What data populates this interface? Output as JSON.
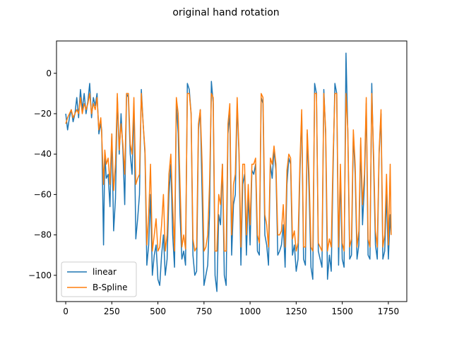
{
  "chart_data": {
    "type": "line",
    "title": "original hand rotation",
    "xlabel": "",
    "ylabel": "",
    "xlim": [
      -50,
      1850
    ],
    "ylim": [
      -113,
      16
    ],
    "xticks": [
      0,
      250,
      500,
      750,
      1000,
      1250,
      1500,
      1750
    ],
    "yticks": [
      0,
      -20,
      -40,
      -60,
      -80,
      -100
    ],
    "grid": false,
    "legend_position": "lower-left",
    "colors": {
      "linear": "#1f77b4",
      "bspline": "#ff7f0e"
    },
    "series": [
      {
        "name": "linear",
        "x": [
          0,
          10,
          20,
          30,
          40,
          50,
          60,
          70,
          80,
          90,
          100,
          110,
          120,
          130,
          140,
          150,
          160,
          170,
          180,
          190,
          195,
          205,
          212,
          220,
          230,
          240,
          250,
          260,
          270,
          280,
          290,
          300,
          310,
          320,
          330,
          340,
          350,
          360,
          370,
          380,
          390,
          400,
          410,
          420,
          430,
          440,
          450,
          460,
          470,
          480,
          490,
          500,
          510,
          520,
          530,
          540,
          550,
          560,
          570,
          580,
          590,
          600,
          610,
          620,
          630,
          640,
          650,
          660,
          670,
          680,
          690,
          700,
          710,
          720,
          730,
          740,
          750,
          760,
          770,
          780,
          790,
          800,
          810,
          820,
          830,
          840,
          850,
          860,
          870,
          880,
          890,
          900,
          910,
          920,
          930,
          940,
          950,
          960,
          970,
          980,
          990,
          1000,
          1010,
          1020,
          1030,
          1040,
          1050,
          1060,
          1070,
          1080,
          1090,
          1100,
          1110,
          1120,
          1130,
          1140,
          1150,
          1160,
          1170,
          1180,
          1190,
          1200,
          1210,
          1220,
          1230,
          1240,
          1250,
          1260,
          1270,
          1280,
          1290,
          1300,
          1310,
          1320,
          1330,
          1340,
          1350,
          1360,
          1370,
          1380,
          1390,
          1400,
          1410,
          1420,
          1430,
          1440,
          1450,
          1460,
          1470,
          1480,
          1490,
          1500,
          1510,
          1520,
          1530,
          1540,
          1550,
          1560,
          1570,
          1580,
          1590,
          1600,
          1610,
          1620,
          1630,
          1640,
          1650,
          1660,
          1670,
          1680,
          1690,
          1700,
          1710,
          1720,
          1730,
          1740,
          1750,
          1760,
          1765
        ],
        "values": [
          -20,
          -28,
          -22,
          -18,
          -24,
          -20,
          -12,
          -22,
          -8,
          -18,
          -10,
          -20,
          -14,
          -5,
          -22,
          -12,
          -16,
          -10,
          -30,
          -25,
          -28,
          -85,
          -40,
          -52,
          -50,
          -66,
          -30,
          -78,
          -62,
          -12,
          -40,
          -20,
          -38,
          -65,
          -10,
          -12,
          -40,
          -50,
          -15,
          -82,
          -72,
          -60,
          -8,
          -25,
          -40,
          -95,
          -85,
          -60,
          -100,
          -90,
          -85,
          -102,
          -105,
          -90,
          -80,
          -100,
          -92,
          -60,
          -45,
          -80,
          -96,
          -15,
          -30,
          -70,
          -92,
          -88,
          -95,
          -5,
          -8,
          -20,
          -90,
          -100,
          -98,
          -28,
          -18,
          -60,
          -105,
          -100,
          -95,
          -70,
          -4,
          -15,
          -100,
          -108,
          -70,
          -75,
          -45,
          -100,
          -105,
          -30,
          -20,
          -90,
          -65,
          -60,
          -15,
          -40,
          -95,
          -55,
          -50,
          -90,
          -60,
          -85,
          -48,
          -50,
          -45,
          -88,
          -90,
          -12,
          -15,
          -80,
          -85,
          -95,
          -45,
          -52,
          -38,
          -48,
          -90,
          -88,
          -85,
          -75,
          -96,
          -55,
          -42,
          -45,
          -90,
          -85,
          -98,
          -92,
          -50,
          -20,
          -92,
          -95,
          -30,
          -58,
          -96,
          -102,
          -5,
          -10,
          -88,
          -92,
          -96,
          -8,
          -30,
          -102,
          -90,
          -98,
          -48,
          -5,
          -10,
          -95,
          -50,
          -92,
          -96,
          10,
          -30,
          -92,
          -90,
          -30,
          -50,
          -92,
          -85,
          -35,
          -75,
          -55,
          -15,
          -90,
          -92,
          -5,
          -45,
          -85,
          -92,
          -40,
          -20,
          -92,
          -88,
          -60,
          -92,
          -70,
          -80
        ]
      },
      {
        "name": "B-Spline",
        "x": [
          0,
          10,
          20,
          30,
          40,
          50,
          60,
          70,
          80,
          90,
          100,
          110,
          120,
          130,
          140,
          150,
          160,
          170,
          180,
          190,
          195,
          205,
          212,
          220,
          230,
          240,
          250,
          260,
          270,
          280,
          290,
          300,
          310,
          320,
          330,
          340,
          350,
          360,
          370,
          380,
          390,
          400,
          410,
          420,
          430,
          440,
          450,
          460,
          470,
          480,
          490,
          500,
          510,
          520,
          530,
          540,
          550,
          560,
          570,
          580,
          590,
          600,
          610,
          620,
          630,
          640,
          650,
          660,
          670,
          680,
          690,
          700,
          710,
          720,
          730,
          740,
          750,
          760,
          770,
          780,
          790,
          800,
          810,
          820,
          830,
          840,
          850,
          860,
          870,
          880,
          890,
          900,
          910,
          920,
          930,
          940,
          950,
          960,
          970,
          980,
          990,
          1000,
          1010,
          1020,
          1030,
          1040,
          1050,
          1060,
          1070,
          1080,
          1090,
          1100,
          1110,
          1120,
          1130,
          1140,
          1150,
          1160,
          1170,
          1180,
          1190,
          1200,
          1210,
          1220,
          1230,
          1240,
          1250,
          1260,
          1270,
          1280,
          1290,
          1300,
          1310,
          1320,
          1330,
          1340,
          1350,
          1360,
          1370,
          1380,
          1390,
          1400,
          1410,
          1420,
          1430,
          1440,
          1450,
          1460,
          1470,
          1480,
          1490,
          1500,
          1510,
          1520,
          1530,
          1540,
          1550,
          1560,
          1570,
          1580,
          1590,
          1600,
          1610,
          1620,
          1630,
          1640,
          1650,
          1660,
          1670,
          1680,
          1690,
          1700,
          1710,
          1720,
          1730,
          1740,
          1750,
          1760,
          1765
        ],
        "values": [
          -25,
          -22,
          -20,
          -18,
          -22,
          -20,
          -18,
          -20,
          -12,
          -20,
          -15,
          -18,
          -15,
          -10,
          -20,
          -15,
          -18,
          -12,
          -28,
          -22,
          -30,
          -55,
          -38,
          -45,
          -42,
          -55,
          -30,
          -58,
          -45,
          -10,
          -38,
          -25,
          -35,
          -50,
          -10,
          -10,
          -35,
          -40,
          -12,
          -55,
          -52,
          -50,
          -10,
          -25,
          -38,
          -85,
          -70,
          -45,
          -88,
          -80,
          -72,
          -88,
          -86,
          -75,
          -60,
          -88,
          -80,
          -50,
          -40,
          -65,
          -88,
          -12,
          -20,
          -55,
          -86,
          -80,
          -87,
          -10,
          -10,
          -20,
          -82,
          -88,
          -86,
          -25,
          -18,
          -45,
          -88,
          -86,
          -80,
          -55,
          -10,
          -12,
          -88,
          -88,
          -60,
          -65,
          -45,
          -88,
          -88,
          -25,
          -15,
          -80,
          -55,
          -50,
          -12,
          -38,
          -86,
          -45,
          -45,
          -80,
          -55,
          -75,
          -45,
          -45,
          -42,
          -80,
          -84,
          -10,
          -12,
          -70,
          -75,
          -86,
          -42,
          -45,
          -36,
          -45,
          -80,
          -80,
          -78,
          -65,
          -86,
          -48,
          -40,
          -42,
          -82,
          -78,
          -88,
          -84,
          -45,
          -18,
          -86,
          -86,
          -28,
          -50,
          -86,
          -88,
          -10,
          -10,
          -84,
          -86,
          -88,
          -10,
          -28,
          -88,
          -82,
          -86,
          -42,
          -10,
          -10,
          -86,
          -45,
          -84,
          -88,
          -10,
          -28,
          -86,
          -82,
          -28,
          -45,
          -86,
          -78,
          -32,
          -65,
          -50,
          -12,
          -82,
          -86,
          -10,
          -40,
          -78,
          -86,
          -38,
          -18,
          -86,
          -80,
          -50,
          -85,
          -45,
          -80
        ]
      }
    ]
  }
}
